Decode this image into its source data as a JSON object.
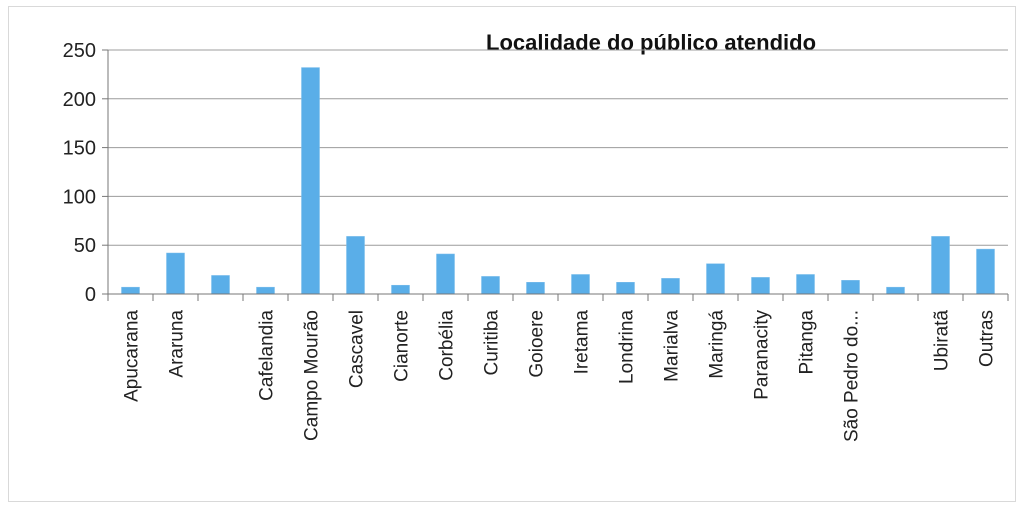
{
  "chart_data": {
    "type": "bar",
    "title": "Localidade do público atendido",
    "xlabel": "",
    "ylabel": "",
    "ylim": [
      0,
      250
    ],
    "yticks": [
      0,
      50,
      100,
      150,
      200,
      250
    ],
    "grid": true,
    "legend": "none",
    "bar_color": "#5aaee8",
    "categories": [
      "Apucarana",
      "Araruna",
      "",
      "Cafelandia",
      "Campo Mourão",
      "Cascavel",
      "Cianorte",
      "Corbélia",
      "Curitiba",
      "Goioere",
      "Iretama",
      "Londrina",
      "Marialva",
      "Maringá",
      "Paranacity",
      "Pitanga",
      "São Pedro do...",
      "",
      "Ubiratã",
      "Outras"
    ],
    "values": [
      7,
      42,
      19,
      7,
      232,
      59,
      9,
      41,
      18,
      12,
      20,
      12,
      16,
      31,
      17,
      20,
      14,
      7,
      59,
      46
    ]
  }
}
